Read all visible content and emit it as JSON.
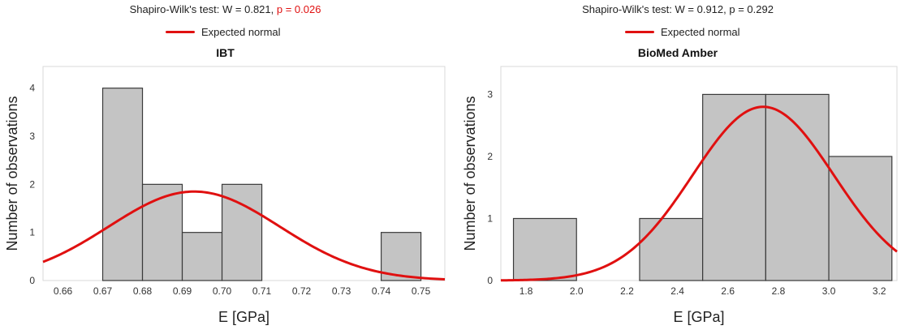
{
  "chart_data": [
    {
      "type": "bar",
      "title": "IBT",
      "stat_text": "Shapiro-Wilk's test: W = 0.821, ",
      "stat_p_text": "p = 0.026",
      "legend": "Expected normal",
      "xlabel": "E [GPa]",
      "ylabel": "Number of observations",
      "xlim": [
        0.655,
        0.756
      ],
      "ylim": [
        0,
        4.45
      ],
      "xticks": [
        "0.66",
        "0.67",
        "0.68",
        "0.69",
        "0.70",
        "0.71",
        "0.72",
        "0.73",
        "0.74",
        "0.75"
      ],
      "yticks": [
        "0",
        "1",
        "2",
        "3",
        "4"
      ],
      "bins": [
        {
          "start": 0.67,
          "end": 0.68,
          "value": 4
        },
        {
          "start": 0.68,
          "end": 0.69,
          "value": 2
        },
        {
          "start": 0.69,
          "end": 0.7,
          "value": 1
        },
        {
          "start": 0.7,
          "end": 0.71,
          "value": 2
        },
        {
          "start": 0.74,
          "end": 0.75,
          "value": 1
        }
      ],
      "curve": {
        "mean": 0.693,
        "sd": 0.0215,
        "peak": 1.85
      },
      "colors": {
        "bar": "#c4c4c4",
        "curve": "#e01010",
        "highlight": "#e01010"
      }
    },
    {
      "type": "bar",
      "title": "BioMed Amber",
      "stat_text": "Shapiro-Wilk's test: W = 0.912, p = 0.292",
      "legend": "Expected normal",
      "xlabel": "E [GPa]",
      "ylabel": "Number of observations",
      "xlim": [
        1.7,
        3.27
      ],
      "ylim": [
        0,
        3.45
      ],
      "xticks": [
        "1.8",
        "2.0",
        "2.2",
        "2.4",
        "2.6",
        "2.8",
        "3.0",
        "3.2"
      ],
      "yticks": [
        "0",
        "1",
        "2",
        "3"
      ],
      "bins": [
        {
          "start": 1.75,
          "end": 2.0,
          "value": 1
        },
        {
          "start": 2.25,
          "end": 2.5,
          "value": 1
        },
        {
          "start": 2.5,
          "end": 2.75,
          "value": 3
        },
        {
          "start": 2.75,
          "end": 3.0,
          "value": 3
        },
        {
          "start": 3.0,
          "end": 3.25,
          "value": 2
        }
      ],
      "curve": {
        "mean": 2.74,
        "sd": 0.28,
        "peak": 2.8
      },
      "colors": {
        "bar": "#c4c4c4",
        "curve": "#e01010"
      }
    }
  ]
}
